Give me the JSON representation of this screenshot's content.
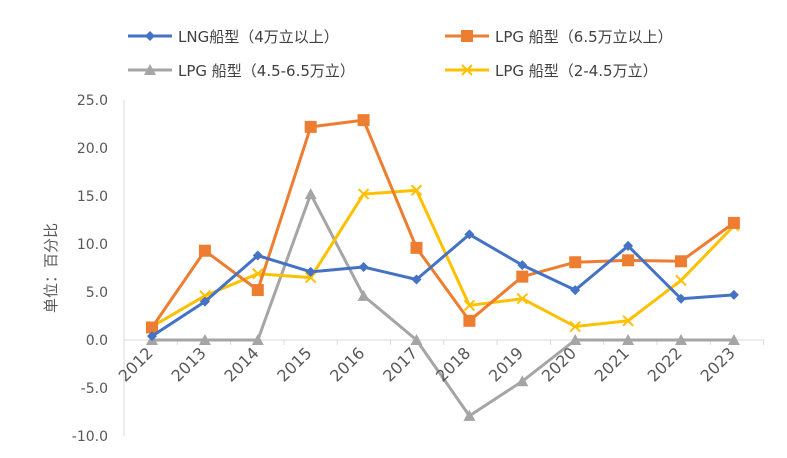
{
  "chart_data": {
    "type": "line",
    "ylabel": "单位：百分比",
    "ylim": [
      -10,
      25
    ],
    "yticks": [
      "25.0",
      "20.0",
      "15.0",
      "10.0",
      "5.0",
      "0.0",
      "-5.0",
      "-10.0"
    ],
    "categories": [
      "2012",
      "2013",
      "2014",
      "2015",
      "2016",
      "2017",
      "2018",
      "2019",
      "2020",
      "2021",
      "2022",
      "2023"
    ],
    "legend_position": "top",
    "grid": false,
    "series": [
      {
        "name": "LNG船型（4万立以上）",
        "color": "#4472C4",
        "marker": "diamond",
        "values": [
          0.4,
          4.0,
          8.8,
          7.1,
          7.6,
          6.3,
          11.0,
          7.8,
          5.2,
          9.8,
          4.3,
          4.7
        ]
      },
      {
        "name": "LPG 船型（6.5万立以上）",
        "color": "#ED7D31",
        "marker": "square",
        "values": [
          1.3,
          9.3,
          5.2,
          22.2,
          22.9,
          9.6,
          2.0,
          6.6,
          8.1,
          8.3,
          8.2,
          12.2
        ]
      },
      {
        "name": "LPG 船型（4.5-6.5万立）",
        "color": "#A5A5A5",
        "marker": "triangle",
        "values": [
          0.0,
          0.0,
          0.0,
          15.2,
          4.6,
          0.0,
          -7.9,
          -4.3,
          0.0,
          0.0,
          0.0,
          0.0
        ]
      },
      {
        "name": "LPG 船型（2-4.5万立）",
        "color": "#FFC000",
        "marker": "x",
        "values": [
          1.4,
          4.6,
          6.9,
          6.5,
          15.2,
          15.6,
          3.6,
          4.3,
          1.4,
          2.0,
          6.2,
          11.9
        ]
      }
    ]
  }
}
